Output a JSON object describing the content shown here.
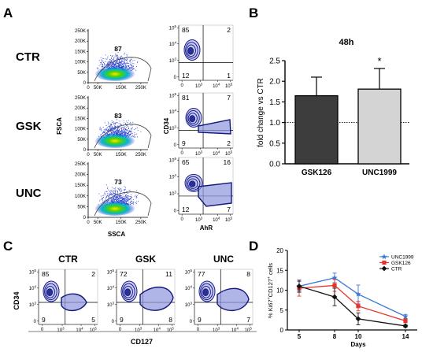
{
  "panel_labels": {
    "a": "A",
    "b": "B",
    "c": "C",
    "d": "D"
  },
  "panel_a": {
    "row_labels": [
      "CTR",
      "GSK",
      "UNC"
    ],
    "scatter_pcts": [
      "87",
      "83",
      "73"
    ],
    "scatter_x_ticks": [
      "0",
      "50K",
      "150K",
      "250K"
    ],
    "scatter_y_ticks": [
      "250K",
      "200K",
      "150K",
      "100K",
      "50K",
      "0"
    ],
    "scatter_xlabel": "SSCA",
    "scatter_ylabel": "FSCA",
    "contour_xlabel": "AhR",
    "contour_ylabel": "CD34",
    "contour_quadrants": [
      {
        "ul": "85",
        "ur": "2",
        "ll": "12",
        "lr": "1"
      },
      {
        "ul": "81",
        "ur": "7",
        "ll": "9",
        "lr": "2"
      },
      {
        "ul": "65",
        "ur": "16",
        "ll": "12",
        "lr": "7"
      }
    ]
  },
  "panel_c": {
    "titles": [
      "CTR",
      "GSK",
      "UNC"
    ],
    "quadrants": [
      {
        "ul": "85",
        "ur": "2",
        "ll": "9",
        "lr": "5"
      },
      {
        "ul": "72",
        "ur": "11",
        "ll": "9",
        "lr": "8"
      },
      {
        "ul": "77",
        "ur": "8",
        "ll": "9",
        "lr": "7"
      }
    ],
    "xlabel": "CD127",
    "ylabel": "CD34"
  },
  "log_ticks": {
    "zero": "0",
    "b3": "10",
    "e3": "3",
    "b4": "10",
    "e4": "4",
    "b5": "10",
    "e5": "5"
  },
  "chart_data": [
    {
      "type": "bar",
      "title": "48h",
      "categories": [
        "GSK126",
        "UNC1999"
      ],
      "values": [
        1.65,
        1.81
      ],
      "errors": [
        0.45,
        0.5
      ],
      "ylabel": "fold change vs CTR",
      "ylim": [
        0,
        2.5
      ],
      "yticks": [
        "0.0",
        "0.5",
        "1.0",
        "1.5",
        "2.0",
        "2.5"
      ],
      "reference_line": 1.0,
      "annotations": [
        {
          "category": "UNC1999",
          "text": "*"
        }
      ],
      "colors": [
        "#3d3d3d",
        "#d4d4d4"
      ]
    },
    {
      "type": "line",
      "xlabel": "Days",
      "ylabel": "% Ki67+CD127+ cells",
      "ylabel_parts": {
        "pre": "% Ki67",
        "sup1": "+",
        "mid": "CD127",
        "sup2": "+",
        "post": " cells"
      },
      "x": [
        5,
        8,
        10,
        14
      ],
      "xticks": [
        "5",
        "8",
        "10",
        "14"
      ],
      "yticks": [
        "0",
        "5",
        "10",
        "15",
        "20"
      ],
      "ylim": [
        0,
        20
      ],
      "series": [
        {
          "name": "UNC1999",
          "color": "#3a78d8",
          "marker": "star",
          "values": [
            11,
            13.1,
            9,
            3.4
          ],
          "errors": [
            1.2,
            1.2,
            2.3,
            0.5
          ]
        },
        {
          "name": "GSK126",
          "color": "#e8322b",
          "marker": "square",
          "values": [
            10.5,
            11.2,
            6,
            2.3
          ],
          "errors": [
            2.0,
            1.5,
            1.2,
            0.5
          ]
        },
        {
          "name": "CTR",
          "color": "#111111",
          "marker": "diamond",
          "values": [
            11,
            8.3,
            2.8,
            1.0
          ],
          "errors": [
            1.5,
            2.2,
            1.5,
            0.3
          ]
        }
      ]
    }
  ]
}
